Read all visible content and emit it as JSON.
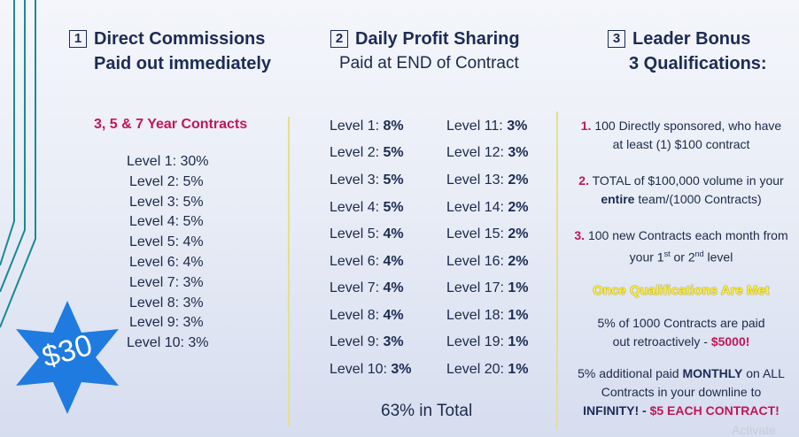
{
  "colors": {
    "navy": "#1d2b55",
    "magenta": "#c0175a",
    "yellow": "#ffee33",
    "star": "#1f7be0",
    "teal": "#1a8a95"
  },
  "col1": {
    "num": "1",
    "title": "Direct Commissions",
    "subtitle": "Paid out immediately",
    "contracts": "3, 5 & 7 Year Contracts",
    "levels": [
      "Level 1: 30%",
      "Level 2:  5%",
      "Level 3:  5%",
      "Level 4:  5%",
      "Level 5:  4%",
      "Level 6:  4%",
      "Level 7:  3%",
      "Level 8:  3%",
      "Level 9:  3%",
      "Level 10: 3%"
    ],
    "badge": "$30"
  },
  "col2": {
    "num": "2",
    "title": "Daily Profit Sharing",
    "subtitle": "Paid at END of Contract",
    "left": [
      {
        "label": "Level 1: ",
        "value": "8%"
      },
      {
        "label": "Level 2: ",
        "value": "5%"
      },
      {
        "label": "Level 3: ",
        "value": "5%"
      },
      {
        "label": "Level 4: ",
        "value": "5%"
      },
      {
        "label": "Level 5: ",
        "value": "4%"
      },
      {
        "label": "Level 6: ",
        "value": "4%"
      },
      {
        "label": "Level 7: ",
        "value": "4%"
      },
      {
        "label": "Level 8: ",
        "value": "4%"
      },
      {
        "label": "Level 9: ",
        "value": "3%"
      },
      {
        "label": "Level 10: ",
        "value": "3%"
      }
    ],
    "right": [
      {
        "label": "Level 11: ",
        "value": "3%"
      },
      {
        "label": "Level 12: ",
        "value": "3%"
      },
      {
        "label": "Level 13: ",
        "value": "2%"
      },
      {
        "label": "Level 14: ",
        "value": "2%"
      },
      {
        "label": "Level 15: ",
        "value": "2%"
      },
      {
        "label": "Level 16: ",
        "value": "2%"
      },
      {
        "label": "Level 17: ",
        "value": "1%"
      },
      {
        "label": "Level 18: ",
        "value": "1%"
      },
      {
        "label": "Level 19: ",
        "value": "1%"
      },
      {
        "label": "Level 20: ",
        "value": "1%"
      }
    ],
    "total": "63% in Total"
  },
  "col3": {
    "num": "3",
    "title": "Leader Bonus",
    "subtitle": "3 Qualifications:",
    "q1_num": "1.",
    "q1_line1": " 100 Directly sponsored, who have",
    "q1_line2": "at least (1) $100 contract",
    "q2_num": "2.",
    "q2_line1": " TOTAL of $100,000 volume in your",
    "q2_bold": "entire",
    "q2_line2": " team/(1000 Contracts)",
    "q3_num": "3.",
    "q3_line1": " 100 new Contracts each month from",
    "q3_a": "your 1",
    "q3_sup1": "st",
    "q3_b": " or 2",
    "q3_sup2": "nd",
    "q3_c": " level",
    "once": "Once Qualifications Are Met",
    "p1_line1": "5% of 1000 Contracts are paid",
    "p1_line2": "out retroactively - ",
    "p1_amount": "$5000!",
    "p2_a": "5% additional paid ",
    "p2_bold": "MONTHLY",
    "p2_b": " on ALL",
    "p2_line2": "Contracts in your downline to",
    "p2_line3": "INFINITY! - ",
    "p2_bold2": "$5 EACH CONTRACT!"
  },
  "watermark": "Activate"
}
